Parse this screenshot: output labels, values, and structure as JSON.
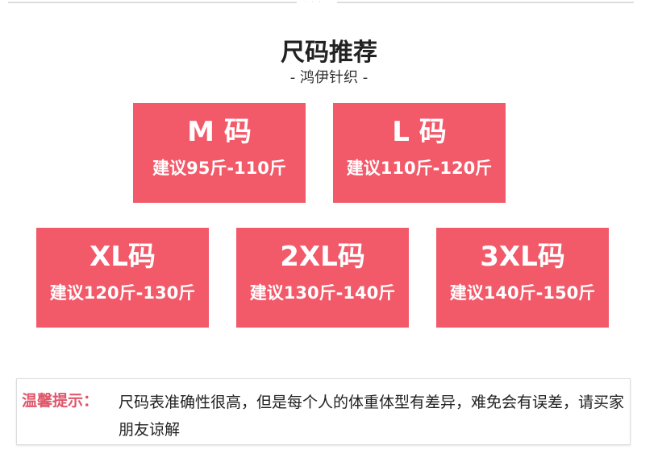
{
  "colors": {
    "box": "#f25a6a",
    "tip_label": "#e0566a"
  },
  "header": {
    "title": "尺码推荐",
    "subtitle": "- 鸿伊针织 -"
  },
  "sizes": [
    {
      "size": "M 码",
      "recommend": "建议95斤-110斤"
    },
    {
      "size": "L 码",
      "recommend": "建议110斤-120斤"
    },
    {
      "size": "XL码",
      "recommend": "建议120斤-130斤"
    },
    {
      "size": "2XL码",
      "recommend": "建议130斤-140斤"
    },
    {
      "size": "3XL码",
      "recommend": "建议140斤-150斤"
    }
  ],
  "notice": {
    "label": "温馨提示：",
    "text": "尺码表准确性很高，但是每个人的体重体型有差异，难免会有误差，请买家朋友谅解"
  }
}
